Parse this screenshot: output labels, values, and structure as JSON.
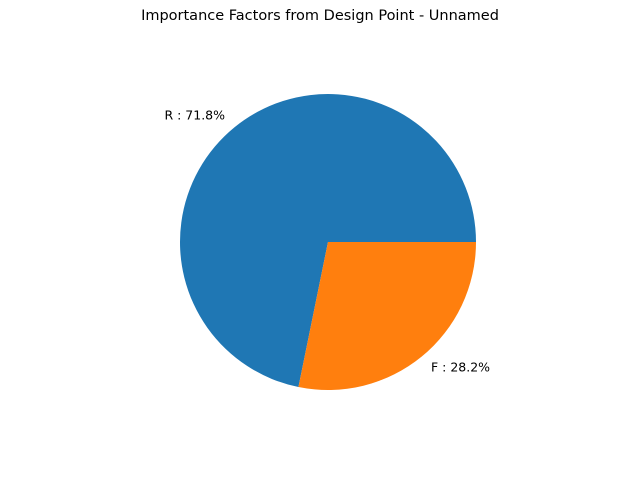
{
  "chart_data": {
    "type": "pie",
    "title": "Importance Factors from Design Point - Unnamed",
    "slices": [
      {
        "name": "R",
        "value": 71.8,
        "label": "R : 71.8%",
        "color": "#1f77b4"
      },
      {
        "name": "F",
        "value": 28.2,
        "label": "F : 28.2%",
        "color": "#ff7f0e"
      }
    ],
    "start_angle_deg": 0,
    "direction": "counterclockwise",
    "legend": "none"
  }
}
